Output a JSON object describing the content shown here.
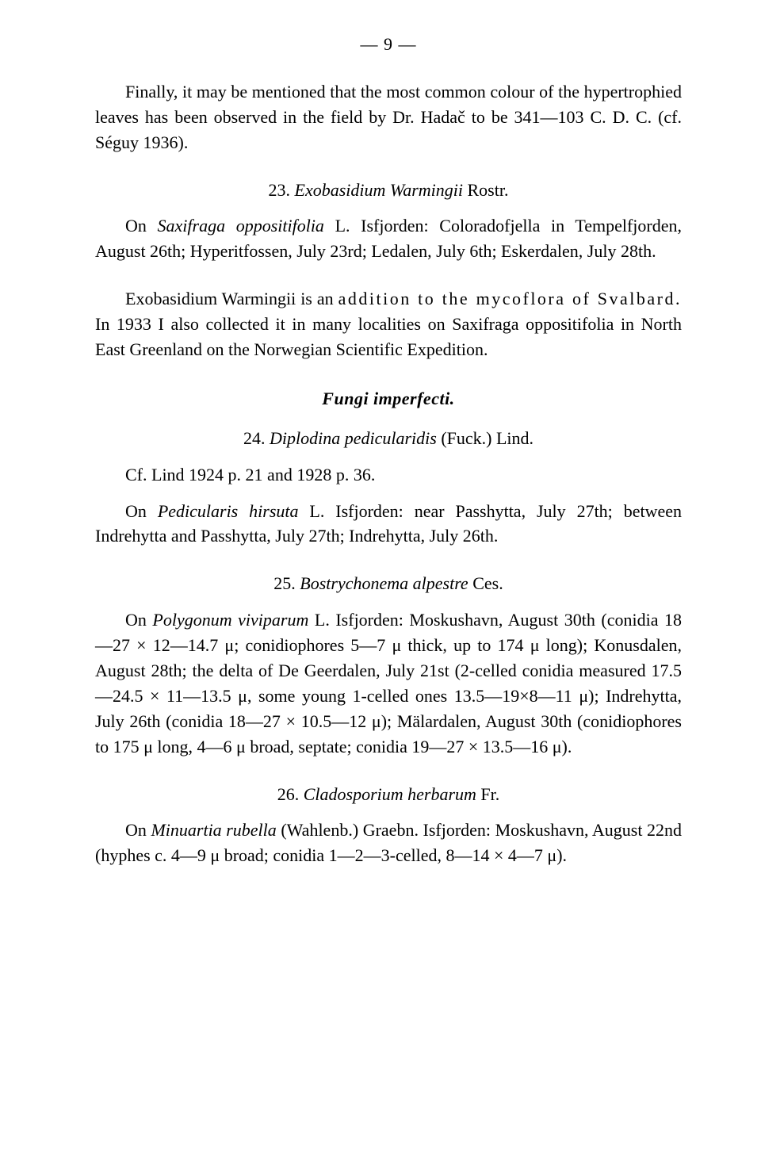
{
  "pageNumber": "— 9 —",
  "paragraphs": {
    "p1": "Finally, it may be mentioned that the most common colour of the hypertrophied leaves has been observed in the field by Dr. Hadač to be 341—103 C. D. C. (cf. Séguy 1936)."
  },
  "species23": {
    "number": "23.",
    "name": "Exobasidium Warmingii",
    "author": "Rostr."
  },
  "p2a": "On ",
  "p2b": "Saxifraga oppositifolia",
  "p2c": " L. Isfjorden: Coloradofjella in Tempelfjorden, August 26th; Hyperitfossen, July 23rd; Ledalen, July 6th; Eskerdalen, July 28th.",
  "p3a": "Exobasidium Warmingii is an ",
  "p3b": "addition to the mycoflora of Svalbard.",
  "p3c": " In 1933 I also collected it in many localities on Saxifraga oppositifolia in North East Greenland on the Norwegian Scientific Expedition.",
  "sectionHeading": "Fungi imperfecti.",
  "species24": {
    "number": "24.",
    "name": "Diplodina pedicularidis",
    "author": "(Fuck.) Lind."
  },
  "p4": "Cf. Lind 1924 p. 21 and 1928 p. 36.",
  "p5a": "On ",
  "p5b": "Pedicularis hirsuta",
  "p5c": " L. Isfjorden: near Passhytta, July 27th; between Indrehytta and Passhytta, July 27th; Indrehytta, July 26th.",
  "species25": {
    "number": "25.",
    "name": "Bostrychonema alpestre",
    "author": "Ces."
  },
  "p6a": "On ",
  "p6b": "Polygonum viviparum",
  "p6c": " L. Isfjorden: Moskushavn, August 30th (conidia 18—27 × 12—14.7 μ; conidiophores 5—7 μ thick, up to 174 μ long); Konusdalen, August 28th; the delta of De Geerdalen, July 21st (2-celled conidia measured 17.5—24.5 × 11—13.5 μ, some young 1-celled ones 13.5—19×8—11 μ); Indrehytta, July 26th (conidia 18—27 × 10.5—12 μ); Mälardalen, August 30th (conidiophores to 175 μ long, 4—6 μ broad, septate; conidia 19—27 × 13.5—16 μ).",
  "species26": {
    "number": "26.",
    "name": "Cladosporium herbarum",
    "author": "Fr."
  },
  "p7a": "On ",
  "p7b": "Minuartia rubella",
  "p7c": " (Wahlenb.) Graebn. Isfjorden: Moskushavn, August 22nd (hyphes c. 4—9 μ broad; conidia 1—2—3-celled, 8—14 × 4—7 μ)."
}
